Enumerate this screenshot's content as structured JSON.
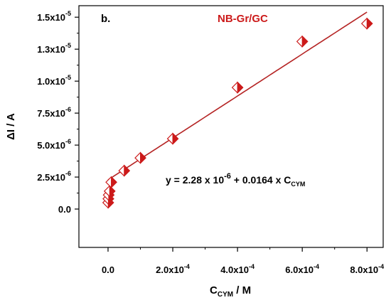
{
  "chart_data": {
    "type": "scatter",
    "panel_label": "b.",
    "legend_label": "NB-Gr/GC",
    "xlabel": "C",
    "xlabel_sub": "CYM",
    "xlabel_unit": " / M",
    "ylabel": "ΔI / A",
    "xlim": [
      -9e-05,
      0.00085
    ],
    "ylim": [
      -3e-06,
      1.59e-05
    ],
    "x_ticks": [
      {
        "value": 0,
        "label": "0.0"
      },
      {
        "value": 0.0002,
        "label": "2.0x10",
        "exp": "-4"
      },
      {
        "value": 0.0004,
        "label": "4.0x10",
        "exp": "-4"
      },
      {
        "value": 0.0006,
        "label": "6.0x10",
        "exp": "-4"
      },
      {
        "value": 0.0008,
        "label": "8.0x10",
        "exp": "-4"
      }
    ],
    "y_ticks": [
      {
        "value": 0,
        "label": "0.0"
      },
      {
        "value": 2.5e-06,
        "label": "2.5x10",
        "exp": "-6"
      },
      {
        "value": 5e-06,
        "label": "5.0x10",
        "exp": "-6"
      },
      {
        "value": 7.5e-06,
        "label": "7.5x10",
        "exp": "-6"
      },
      {
        "value": 1e-05,
        "label": "1.0x10",
        "exp": "-5"
      },
      {
        "value": 1.25e-05,
        "label": "1.3x10",
        "exp": "-5"
      },
      {
        "value": 1.5e-05,
        "label": "1.5x10",
        "exp": "-5"
      }
    ],
    "series": [
      {
        "marker": "half-filled-diamond",
        "x": [
          5e-07,
          1e-06,
          2e-06,
          5e-06,
          1e-05,
          5e-05,
          0.0001,
          0.0002,
          0.0004,
          0.0006,
          0.0008
        ],
        "y": [
          5e-07,
          8e-07,
          1.1e-06,
          1.4e-06,
          2.1e-06,
          3e-06,
          4e-06,
          5.5e-06,
          9.5e-06,
          1.31e-05,
          1.45e-05
        ]
      }
    ],
    "fit_line": {
      "x_range": [
        0,
        0.0008
      ],
      "intercept": 2.28e-06,
      "slope": 0.0164
    },
    "equation": {
      "prefix": "y = 2.28 x 10",
      "exp": "-6",
      "middle": " + 0.0164 x C",
      "sub": "CYM"
    },
    "colors": {
      "marker": "#cc1a1a",
      "fit_line": "#b52424",
      "legend_text": "#cc1a1a",
      "axis": "#000000"
    }
  }
}
